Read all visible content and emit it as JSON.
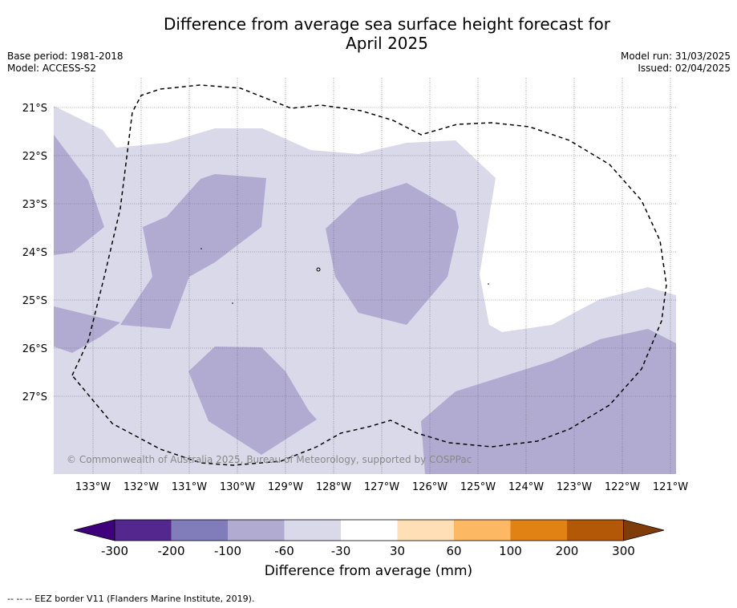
{
  "title_line1": "Difference from average sea surface height forecast for",
  "title_line2": "April 2025",
  "meta_left": {
    "base_period": "Base period: 1981-2018",
    "model": "Model: ACCESS-S2"
  },
  "meta_right": {
    "model_run": "Model run: 31/03/2025",
    "issued": "Issued: 02/04/2025"
  },
  "copyright": "© Commonwealth of Australia 2025, Bureau of Meteorology, supported by COSPPac",
  "footer": "--  --  -- EEZ border V11 (Flanders Marine Institute, 2019).",
  "map": {
    "lon_labels": [
      "133°W",
      "132°W",
      "131°W",
      "130°W",
      "129°W",
      "128°W",
      "127°W",
      "126°W",
      "125°W",
      "124°W",
      "123°W",
      "122°W",
      "121°W"
    ],
    "lat_labels": [
      "21°S",
      "22°S",
      "23°S",
      "24°S",
      "25°S",
      "26°S",
      "27°S"
    ]
  },
  "colorbar": {
    "title": "Difference from average (mm)",
    "tick_labels": [
      "-300",
      "-200",
      "-100",
      "-60",
      "-30",
      "30",
      "60",
      "100",
      "200",
      "300"
    ],
    "colors": [
      "#3f007d",
      "#54278f",
      "#807dba",
      "#b1abd2",
      "#d9d9ea",
      "#ffffff",
      "#ffe0b6",
      "#fdb863",
      "#e08214",
      "#b35806",
      "#7f3b08"
    ]
  },
  "shading_colors": {
    "light": "#d9d9ea",
    "medium": "#b1abd2"
  }
}
